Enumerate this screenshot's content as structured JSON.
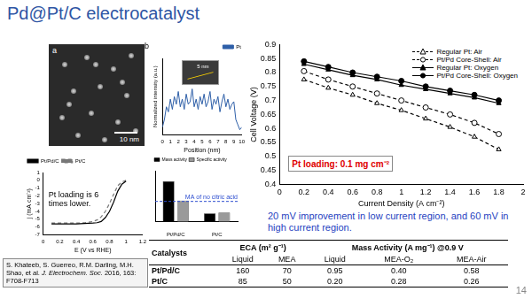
{
  "title": "Pd@Pt/C electrocatalyst",
  "page_number": "14",
  "image_a": {
    "label": "a",
    "scale_bar": "10 nm"
  },
  "chart_data": [
    {
      "type": "line",
      "label": "b",
      "inset_scale_bar": "5 nm",
      "x_label": "Position (nm)",
      "y_label": "Normalized intensity (a.u.)",
      "x": [
        0,
        0.25,
        0.5,
        0.75,
        1,
        1.25,
        1.5,
        1.75,
        2,
        2.25,
        2.5,
        2.75,
        3,
        3.25,
        3.5,
        3.75,
        4,
        4.25,
        4.5,
        4.75,
        5,
        5.25,
        5.5,
        5.75,
        6,
        6.25,
        6.5,
        6.75,
        7,
        7.25,
        7.5,
        7.75,
        8,
        8.25,
        8.5,
        8.75,
        9,
        9.25,
        9.5,
        9.75,
        10
      ],
      "series": [
        {
          "name": "Pt",
          "color": "#2e5fa8",
          "values": [
            0.15,
            0.3,
            0.55,
            0.45,
            0.7,
            0.5,
            0.75,
            0.6,
            0.85,
            0.55,
            0.7,
            0.5,
            0.8,
            0.6,
            0.65,
            0.9,
            0.55,
            0.7,
            0.5,
            0.75,
            0.6,
            0.8,
            0.55,
            0.65,
            0.85,
            0.5,
            0.7,
            0.6,
            0.75,
            0.45,
            0.65,
            0.8,
            0.55,
            0.7,
            0.5,
            0.6,
            0.65,
            0.3,
            0.2,
            0.1,
            0.15
          ]
        }
      ],
      "xlim": [
        0,
        10
      ],
      "xticks": [
        0,
        1,
        2,
        3,
        4,
        5,
        6,
        7,
        8,
        9,
        10
      ],
      "ylim": [
        0,
        1.5
      ],
      "tick_labels": "x",
      "grid": false,
      "legend": "top-right"
    },
    {
      "type": "line",
      "x_label": "E (V vs RHE)",
      "y_label": "j (mA cm⁻²)",
      "annotation": "Pt loading is 6 times lower.",
      "x": [
        0.1,
        0.2,
        0.3,
        0.4,
        0.5,
        0.6,
        0.65,
        0.7,
        0.75,
        0.8,
        0.85,
        0.9,
        0.95,
        1.0
      ],
      "series": [
        {
          "name": "Pt/Pd/C",
          "color": "#000000",
          "line_style": "solid",
          "values": [
            -5.6,
            -5.6,
            -5.6,
            -5.6,
            -5.55,
            -5.5,
            -5.45,
            -5.3,
            -4.8,
            -4.0,
            -2.8,
            -1.4,
            -0.5,
            -0.1
          ]
        },
        {
          "name": "Pt/C",
          "color": "#777777",
          "line_style": "dashed",
          "values": [
            -5.5,
            -5.5,
            -5.5,
            -5.5,
            -5.45,
            -5.3,
            -5.1,
            -4.7,
            -4.0,
            -3.0,
            -1.8,
            -0.7,
            -0.2,
            0
          ]
        }
      ],
      "xlim": [
        0,
        1.2
      ],
      "xticks": [
        0,
        0.2,
        0.4,
        0.6,
        0.8,
        1,
        1.2
      ],
      "ylim": [
        -7,
        1
      ],
      "yticks": [
        -7,
        -6,
        -5,
        -4,
        -3,
        -2,
        -1,
        0,
        1
      ],
      "grid": false,
      "legend": "top-left"
    },
    {
      "type": "bar",
      "categories": [
        "Pt/Pd/C",
        "Pt/C"
      ],
      "series": [
        {
          "name": "Mass activity",
          "color": "#000000",
          "values": [
            0.95,
            0.2
          ]
        },
        {
          "name": "Specific activity",
          "color": "#9a9a9a",
          "values": [
            0.5,
            0.22
          ]
        }
      ],
      "ylim": [
        0,
        1.2
      ],
      "tick_labels": "x",
      "reference_line": {
        "value": 0.48,
        "label": "MA of no citric acid",
        "color": "#2e4fd0"
      },
      "grid": false,
      "legend": "top-left"
    },
    {
      "type": "line",
      "x_label": "Current Density (A cm⁻²)",
      "y_label": "Cell Voltage (V)",
      "annotation": {
        "text": "Pt loading: 0.1 mg cm⁻²",
        "color": "#e00000"
      },
      "x": [
        0.2,
        0.4,
        0.6,
        0.8,
        1.0,
        1.2,
        1.4,
        1.6,
        1.8
      ],
      "series": [
        {
          "name": "Regular Pt: Air",
          "color": "#000000",
          "marker": "triangle-open",
          "line_style": "dashed",
          "values": [
            0.775,
            0.745,
            0.72,
            0.69,
            0.665,
            0.635,
            0.605,
            0.57,
            0.525
          ]
        },
        {
          "name": "Pt/Pd Core-Shell: Air",
          "color": "#000000",
          "marker": "circle-open",
          "line_style": "dashed",
          "values": [
            0.805,
            0.775,
            0.75,
            0.725,
            0.7,
            0.675,
            0.65,
            0.62,
            0.58
          ]
        },
        {
          "name": "Regular Pt: Oxygen",
          "color": "#000000",
          "marker": "triangle",
          "line_style": "solid",
          "values": [
            0.83,
            0.81,
            0.79,
            0.775,
            0.755,
            0.74,
            0.725,
            0.71,
            0.69
          ]
        },
        {
          "name": "Pt/Pd Core-Shell: Oxygen",
          "color": "#000000",
          "marker": "circle",
          "line_style": "solid",
          "values": [
            0.84,
            0.82,
            0.8,
            0.785,
            0.77,
            0.75,
            0.735,
            0.72,
            0.7
          ]
        }
      ],
      "xlim": [
        0,
        2
      ],
      "xticks": [
        0,
        0.2,
        0.4,
        0.6,
        0.8,
        1,
        1.2,
        1.4,
        1.6,
        1.8,
        2
      ],
      "ylim": [
        0.4,
        0.9
      ],
      "yticks": [
        0.4,
        0.45,
        0.5,
        0.55,
        0.6,
        0.65,
        0.7,
        0.75,
        0.8,
        0.85,
        0.9
      ],
      "grid": false,
      "legend": "top-right"
    }
  ],
  "caption": {
    "text": "20 mV improvement in low current region, and 60 mV in high current region.",
    "color": "#1f3fbf"
  },
  "table": {
    "first_column": "Catalysts",
    "groups": [
      {
        "label": "ECA (m² g⁻¹)",
        "columns": [
          "Liquid",
          "MEA"
        ]
      },
      {
        "label": "Mass Activity (A mg⁻¹) @0.9 V",
        "columns": [
          "Liquid",
          "MEA-O₂",
          "MEA-Air"
        ]
      }
    ],
    "rows": [
      [
        "Pt/Pd/C",
        "160",
        "70",
        "0.95",
        "0.40",
        "0.58"
      ],
      [
        "Pt/C",
        "85",
        "50",
        "0.20",
        "0.28",
        "0.26"
      ]
    ]
  },
  "reference": {
    "before": "S. Khateeb, S. Guerreo, R.M. Darling, M.H. Shao, et al. ",
    "journal": "J. Electrochem. Soc.",
    "after": " 2016, 163: F708-F713"
  }
}
